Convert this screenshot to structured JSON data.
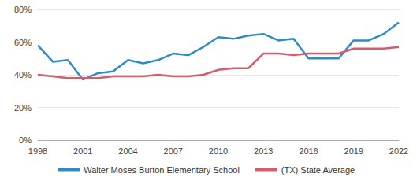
{
  "chart_data": {
    "type": "line",
    "x": [
      1998,
      1999,
      2000,
      2001,
      2002,
      2003,
      2004,
      2005,
      2006,
      2007,
      2008,
      2009,
      2010,
      2011,
      2012,
      2013,
      2014,
      2015,
      2016,
      2017,
      2018,
      2019,
      2020,
      2021,
      2022
    ],
    "series": [
      {
        "name": "Walter Moses Burton Elementary School",
        "color": "#2e8bc4",
        "values": [
          58,
          48,
          49,
          37,
          41,
          42,
          49,
          47,
          49,
          53,
          52,
          57,
          63,
          62,
          64,
          65,
          61,
          62,
          50,
          50,
          50,
          61,
          61,
          65,
          72
        ]
      },
      {
        "name": "(TX) State Average",
        "color": "#d45d6b",
        "values": [
          40,
          39,
          38,
          38,
          38,
          39,
          39,
          39,
          40,
          39,
          39,
          40,
          43,
          44,
          44,
          53,
          53,
          52,
          53,
          53,
          53,
          56,
          56,
          56,
          57
        ]
      }
    ],
    "xlim": [
      1998,
      2022
    ],
    "xticks": [
      1998,
      2001,
      2004,
      2007,
      2010,
      2013,
      2016,
      2019,
      2022
    ],
    "ylim": [
      0,
      80
    ],
    "yticks": [
      {
        "value": 0,
        "label": "0%"
      },
      {
        "value": 20,
        "label": "20%"
      },
      {
        "value": 40,
        "label": "40%"
      },
      {
        "value": 60,
        "label": "60%"
      },
      {
        "value": 80,
        "label": "80%"
      }
    ],
    "grid": true,
    "legend": "bottom"
  }
}
